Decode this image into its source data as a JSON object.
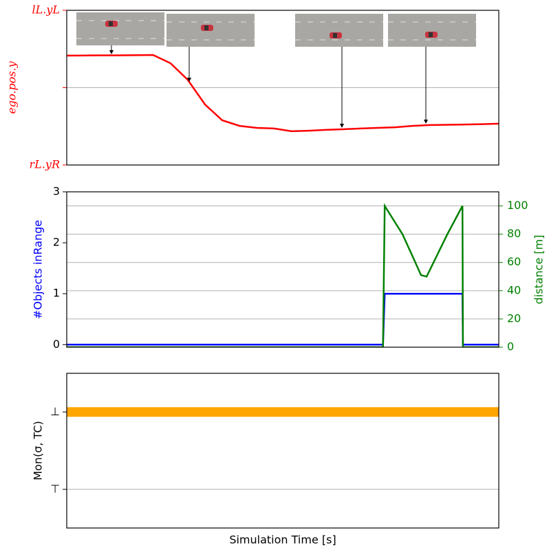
{
  "chart_data": [
    {
      "type": "line",
      "ylabel": "ego.pos.y",
      "color": "red",
      "axis_color": "red",
      "xlim": [
        0,
        100
      ],
      "ylim": [
        0,
        1
      ],
      "yticks": [
        {
          "value": 0,
          "label": "rL.yR"
        },
        {
          "value": 0.5,
          "label": null
        },
        {
          "value": 1,
          "label": "lL.yL"
        }
      ],
      "grid": true,
      "x": [
        0,
        4,
        8,
        12,
        16,
        20,
        24,
        28,
        32,
        36,
        40,
        44,
        48,
        52,
        56,
        60,
        64,
        68,
        72,
        76,
        80,
        84,
        88,
        92,
        96,
        100
      ],
      "values": [
        0.707,
        0.708,
        0.709,
        0.709,
        0.71,
        0.711,
        0.658,
        0.551,
        0.391,
        0.289,
        0.253,
        0.24,
        0.236,
        0.218,
        0.222,
        0.227,
        0.231,
        0.236,
        0.24,
        0.244,
        0.253,
        0.258,
        0.26,
        0.262,
        0.264,
        0.267
      ]
    },
    {
      "type": "line",
      "ylabel": "#Objects inRange",
      "ylabel_color": "blue",
      "y2label": "distance [m]",
      "y2_color": "green",
      "xlim": [
        0,
        100
      ],
      "ylim": [
        -0.05,
        3
      ],
      "yticks": [
        0,
        1,
        2,
        3
      ],
      "y2lim": [
        0,
        110
      ],
      "y2ticks": [
        0,
        20,
        40,
        60,
        80,
        100
      ],
      "grid": true,
      "series": [
        {
          "color": "blue",
          "x": [
            0,
            73.2,
            73.6,
            91.6,
            91.7,
            100
          ],
          "values": [
            0,
            0,
            1,
            1,
            0,
            0
          ]
        },
        {
          "color": "green",
          "axis": "y2",
          "x": [
            0,
            73.2,
            73.6,
            77.7,
            80.1,
            82.0,
            83.3,
            85.7,
            88.1,
            91.6,
            91.7,
            100
          ],
          "values": [
            0,
            0,
            100,
            80,
            64,
            51,
            50,
            65,
            80,
            100,
            0,
            0
          ]
        }
      ]
    },
    {
      "type": "line",
      "ylabel": "Mon(σ, TC)",
      "xlabel": "Simulation Time [s]",
      "xlim": [
        0,
        100
      ],
      "ylim": [
        -0.5,
        1.5
      ],
      "yticks": [
        {
          "value": 0,
          "label": "⊤"
        },
        {
          "value": 1,
          "label": "⊥"
        }
      ],
      "grid": true,
      "series": [
        {
          "color": "orange",
          "width": 14,
          "x": [
            0,
            100
          ],
          "values": [
            1,
            1
          ]
        }
      ]
    }
  ]
}
